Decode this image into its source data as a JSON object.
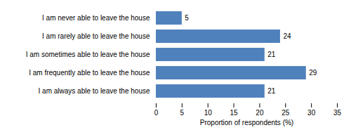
{
  "chart_data": {
    "type": "bar",
    "orientation": "horizontal",
    "categories": [
      "I am never able to leave the house",
      "I am rarely able to leave the house",
      "I am sometimes able to leave the house",
      "I am frequently able to leave the house",
      "I am always able to leave the house"
    ],
    "values": [
      5,
      24,
      21,
      29,
      21
    ],
    "color": "#4f81bd",
    "xlabel": "Proportion of respondents (%)",
    "xlim": [
      0,
      35
    ],
    "xticks": [
      0,
      5,
      10,
      15,
      20,
      25,
      30,
      35
    ],
    "data_labels": true
  }
}
